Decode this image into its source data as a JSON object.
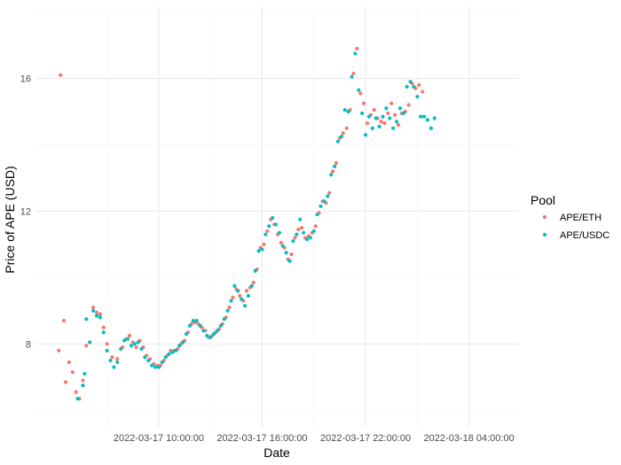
{
  "chart_data": {
    "type": "scatter",
    "title": "",
    "xlabel": "Date",
    "ylabel": "Price of APE (USD)",
    "x_unit": "hours since 2022-03-17 00:00:00",
    "x_ticks": [
      {
        "value": 10,
        "label": "2022-03-17 10:00:00"
      },
      {
        "value": 16,
        "label": "2022-03-17 16:00:00"
      },
      {
        "value": 22,
        "label": "2022-03-17 22:00:00"
      },
      {
        "value": 28,
        "label": "2022-03-18 04:00:00"
      }
    ],
    "y_ticks": [
      {
        "value": 8,
        "label": "8"
      },
      {
        "value": 12,
        "label": "12"
      },
      {
        "value": 16,
        "label": "16"
      }
    ],
    "xlim": [
      2.85,
      30.9
    ],
    "ylim": [
      5.5,
      18.15
    ],
    "grid": true,
    "legend": {
      "title": "Pool",
      "position": "right"
    },
    "series": [
      {
        "name": "APE/ETH",
        "color": "#F8766D",
        "points": [
          [
            4.2,
            7.8
          ],
          [
            4.3,
            16.1
          ],
          [
            4.5,
            8.7
          ],
          [
            4.6,
            6.85
          ],
          [
            4.8,
            7.45
          ],
          [
            5.0,
            7.15
          ],
          [
            5.2,
            6.55
          ],
          [
            5.4,
            6.35
          ],
          [
            5.6,
            6.9
          ],
          [
            5.8,
            7.95
          ],
          [
            6.0,
            8.05
          ],
          [
            6.2,
            9.1
          ],
          [
            6.4,
            8.95
          ],
          [
            6.6,
            8.9
          ],
          [
            6.8,
            8.5
          ],
          [
            7.0,
            8.0
          ],
          [
            7.3,
            7.6
          ],
          [
            7.6,
            7.55
          ],
          [
            7.9,
            7.9
          ],
          [
            8.1,
            8.15
          ],
          [
            8.3,
            8.25
          ],
          [
            8.5,
            8.05
          ],
          [
            8.7,
            7.9
          ],
          [
            8.9,
            8.1
          ],
          [
            9.1,
            7.9
          ],
          [
            9.3,
            7.65
          ],
          [
            9.5,
            7.55
          ],
          [
            9.7,
            7.4
          ],
          [
            9.9,
            7.35
          ],
          [
            10.1,
            7.35
          ],
          [
            10.3,
            7.5
          ],
          [
            10.5,
            7.65
          ],
          [
            10.7,
            7.8
          ],
          [
            10.9,
            7.8
          ],
          [
            11.1,
            7.85
          ],
          [
            11.3,
            8.0
          ],
          [
            11.5,
            8.1
          ],
          [
            11.7,
            8.35
          ],
          [
            11.9,
            8.6
          ],
          [
            12.1,
            8.65
          ],
          [
            12.3,
            8.6
          ],
          [
            12.5,
            8.5
          ],
          [
            12.7,
            8.4
          ],
          [
            12.9,
            8.2
          ],
          [
            13.1,
            8.25
          ],
          [
            13.3,
            8.35
          ],
          [
            13.5,
            8.45
          ],
          [
            13.7,
            8.6
          ],
          [
            13.9,
            8.8
          ],
          [
            14.1,
            9.1
          ],
          [
            14.3,
            9.4
          ],
          [
            14.5,
            9.65
          ],
          [
            14.7,
            9.45
          ],
          [
            14.9,
            9.3
          ],
          [
            15.1,
            9.6
          ],
          [
            15.3,
            9.7
          ],
          [
            15.5,
            9.85
          ],
          [
            15.7,
            10.25
          ],
          [
            15.9,
            10.9
          ],
          [
            16.1,
            11.0
          ],
          [
            16.3,
            11.4
          ],
          [
            16.5,
            11.75
          ],
          [
            16.7,
            11.6
          ],
          [
            16.9,
            11.3
          ],
          [
            17.1,
            11.05
          ],
          [
            17.3,
            10.9
          ],
          [
            17.5,
            10.55
          ],
          [
            17.7,
            10.7
          ],
          [
            17.9,
            11.2
          ],
          [
            18.1,
            11.45
          ],
          [
            18.3,
            11.5
          ],
          [
            18.5,
            11.2
          ],
          [
            18.7,
            11.25
          ],
          [
            18.9,
            11.35
          ],
          [
            19.1,
            11.55
          ],
          [
            19.3,
            11.95
          ],
          [
            19.5,
            12.3
          ],
          [
            19.7,
            12.25
          ],
          [
            19.9,
            12.55
          ],
          [
            20.1,
            13.2
          ],
          [
            20.3,
            13.45
          ],
          [
            20.5,
            14.2
          ],
          [
            20.7,
            14.35
          ],
          [
            20.9,
            14.5
          ],
          [
            21.1,
            15.05
          ],
          [
            21.3,
            16.15
          ],
          [
            21.5,
            16.9
          ],
          [
            21.7,
            15.55
          ],
          [
            21.9,
            15.25
          ],
          [
            22.1,
            14.65
          ],
          [
            22.3,
            14.9
          ],
          [
            22.5,
            15.05
          ],
          [
            22.7,
            14.8
          ],
          [
            22.9,
            14.7
          ],
          [
            23.1,
            14.65
          ],
          [
            23.3,
            14.95
          ],
          [
            23.5,
            15.25
          ],
          [
            23.7,
            14.9
          ],
          [
            23.9,
            14.6
          ],
          [
            24.1,
            14.95
          ],
          [
            24.3,
            15.0
          ],
          [
            24.5,
            15.2
          ],
          [
            24.7,
            15.85
          ],
          [
            24.9,
            15.7
          ],
          [
            25.1,
            15.8
          ],
          [
            25.3,
            15.6
          ]
        ]
      },
      {
        "name": "APE/USDC",
        "color": "#00BFC4",
        "points": [
          [
            5.3,
            6.35
          ],
          [
            5.6,
            6.75
          ],
          [
            5.7,
            7.1
          ],
          [
            5.8,
            8.75
          ],
          [
            6.0,
            8.05
          ],
          [
            6.2,
            9.0
          ],
          [
            6.4,
            8.85
          ],
          [
            6.6,
            8.8
          ],
          [
            6.8,
            8.35
          ],
          [
            7.0,
            7.8
          ],
          [
            7.2,
            7.5
          ],
          [
            7.4,
            7.3
          ],
          [
            7.6,
            7.45
          ],
          [
            7.8,
            7.85
          ],
          [
            8.0,
            8.1
          ],
          [
            8.2,
            8.15
          ],
          [
            8.4,
            7.95
          ],
          [
            8.6,
            8.0
          ],
          [
            8.8,
            8.05
          ],
          [
            9.0,
            7.85
          ],
          [
            9.2,
            7.6
          ],
          [
            9.4,
            7.5
          ],
          [
            9.6,
            7.35
          ],
          [
            9.8,
            7.3
          ],
          [
            10.0,
            7.3
          ],
          [
            10.2,
            7.45
          ],
          [
            10.4,
            7.6
          ],
          [
            10.6,
            7.7
          ],
          [
            10.8,
            7.75
          ],
          [
            11.0,
            7.8
          ],
          [
            11.2,
            7.95
          ],
          [
            11.4,
            8.05
          ],
          [
            11.6,
            8.3
          ],
          [
            11.8,
            8.55
          ],
          [
            12.0,
            8.7
          ],
          [
            12.2,
            8.7
          ],
          [
            12.4,
            8.55
          ],
          [
            12.6,
            8.4
          ],
          [
            12.8,
            8.25
          ],
          [
            13.0,
            8.2
          ],
          [
            13.2,
            8.3
          ],
          [
            13.4,
            8.4
          ],
          [
            13.6,
            8.55
          ],
          [
            13.8,
            8.75
          ],
          [
            14.0,
            9.0
          ],
          [
            14.2,
            9.3
          ],
          [
            14.4,
            9.75
          ],
          [
            14.6,
            9.6
          ],
          [
            14.8,
            9.35
          ],
          [
            15.0,
            9.15
          ],
          [
            15.2,
            9.45
          ],
          [
            15.4,
            9.75
          ],
          [
            15.6,
            10.2
          ],
          [
            15.8,
            10.8
          ],
          [
            16.0,
            10.85
          ],
          [
            16.2,
            11.3
          ],
          [
            16.4,
            11.55
          ],
          [
            16.6,
            11.8
          ],
          [
            16.8,
            11.6
          ],
          [
            17.0,
            11.35
          ],
          [
            17.2,
            10.95
          ],
          [
            17.4,
            10.75
          ],
          [
            17.6,
            10.5
          ],
          [
            17.8,
            11.1
          ],
          [
            18.0,
            11.3
          ],
          [
            18.2,
            11.75
          ],
          [
            18.4,
            11.35
          ],
          [
            18.6,
            11.15
          ],
          [
            18.8,
            11.2
          ],
          [
            19.0,
            11.4
          ],
          [
            19.2,
            11.9
          ],
          [
            19.4,
            12.15
          ],
          [
            19.6,
            12.3
          ],
          [
            19.8,
            12.45
          ],
          [
            20.0,
            13.1
          ],
          [
            20.2,
            13.35
          ],
          [
            20.4,
            14.1
          ],
          [
            20.6,
            14.25
          ],
          [
            20.8,
            15.05
          ],
          [
            21.0,
            15.0
          ],
          [
            21.2,
            16.05
          ],
          [
            21.4,
            16.75
          ],
          [
            21.6,
            15.65
          ],
          [
            21.8,
            14.95
          ],
          [
            22.0,
            14.3
          ],
          [
            22.2,
            14.85
          ],
          [
            22.4,
            14.5
          ],
          [
            22.6,
            14.8
          ],
          [
            22.8,
            14.55
          ],
          [
            23.0,
            14.85
          ],
          [
            23.2,
            15.1
          ],
          [
            23.4,
            14.8
          ],
          [
            23.6,
            14.5
          ],
          [
            23.8,
            14.7
          ],
          [
            24.0,
            15.1
          ],
          [
            24.2,
            14.95
          ],
          [
            24.4,
            15.75
          ],
          [
            24.6,
            15.9
          ],
          [
            24.8,
            15.75
          ],
          [
            25.0,
            15.45
          ],
          [
            25.2,
            14.85
          ],
          [
            25.4,
            14.85
          ],
          [
            25.6,
            14.75
          ],
          [
            25.8,
            14.5
          ],
          [
            26.0,
            14.8
          ]
        ]
      }
    ]
  }
}
